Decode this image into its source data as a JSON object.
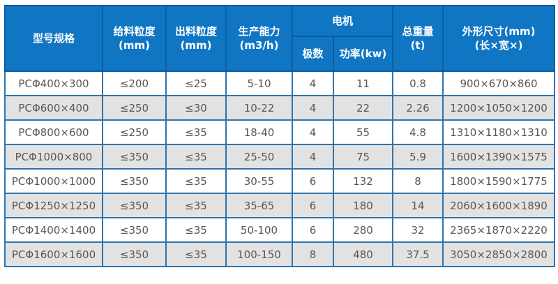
{
  "colors": {
    "header_bg": "#1076c4",
    "header_border": "#0b5da6",
    "body_border": "#2d74ad",
    "row_bg": "#ffffff",
    "row_alt_bg": "#e3e2e2",
    "body_text": "#5a564f",
    "header_text": "#ffffff"
  },
  "table": {
    "header": {
      "model": "型号规格",
      "feed_size": "给料粒度\n(mm)",
      "output_size": "出料粒度\n(mm)",
      "capacity": "生产能力\n(m3/h)",
      "motor": "电机",
      "motor_poles": "极数",
      "motor_power": "功率(kw)",
      "total_weight": "总重量\n(t)",
      "dimensions": "外形尺寸(mm)\n(长×宽×)"
    },
    "rows": [
      [
        "PCΦ400×300",
        "≤200",
        "≤25",
        "5-10",
        "4",
        "11",
        "0.8",
        "900×670×860"
      ],
      [
        "PCΦ600×400",
        "≤250",
        "≤30",
        "10-22",
        "4",
        "22",
        "2.26",
        "1200×1050×1200"
      ],
      [
        "PCΦ800×600",
        "≤250",
        "≤35",
        "18-40",
        "4",
        "55",
        "4.8",
        "1310×1180×1310"
      ],
      [
        "PCΦ1000×800",
        "≤350",
        "≤35",
        "25-50",
        "4",
        "75",
        "5.9",
        "1600×1390×1575"
      ],
      [
        "PCΦ1000×1000",
        "≤350",
        "≤35",
        "30-55",
        "6",
        "132",
        "8",
        "1800×1590×1775"
      ],
      [
        "PCΦ1250×1250",
        "≤350",
        "≤35",
        "35-65",
        "6",
        "180",
        "14",
        "2060×1600×1890"
      ],
      [
        "PCΦ1400×1400",
        "≤350",
        "≤35",
        "50-100",
        "6",
        "280",
        "32",
        "2365×1870×2220"
      ],
      [
        "PCΦ1600×1600",
        "≤350",
        "≤35",
        "100-150",
        "8",
        "480",
        "37.5",
        "3050×2850×2800"
      ]
    ],
    "column_names": [
      "model",
      "feed-size",
      "output-size",
      "capacity",
      "motor-poles",
      "motor-power",
      "total-weight",
      "dimensions"
    ]
  }
}
